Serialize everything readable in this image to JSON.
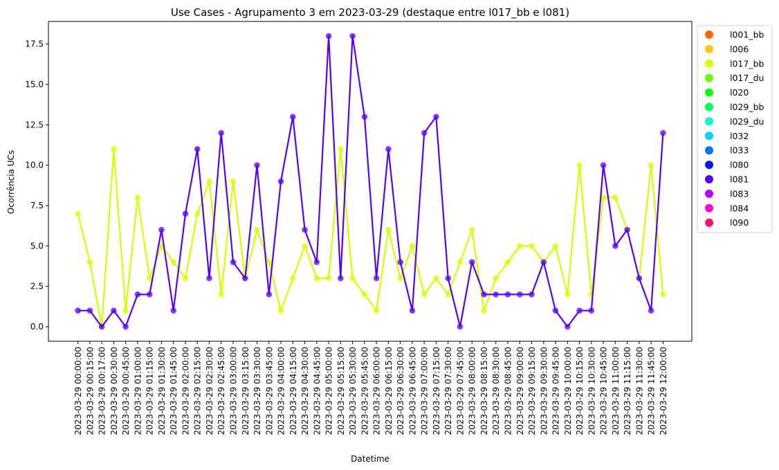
{
  "chart_data": {
    "type": "line",
    "title": "Use Cases - Agrupamento 3 em 2023-03-29 (destaque entre l017_bb e l081)",
    "xlabel": "Datetime",
    "ylabel": "Ocorrência UCs",
    "ylim": [
      -0.9,
      18.9
    ],
    "yticks": [
      "0.0",
      "2.5",
      "5.0",
      "7.5",
      "10.0",
      "12.5",
      "15.0",
      "17.5"
    ],
    "grid": false,
    "legend_position": "outside-right",
    "categories": [
      "2023-03-29 00:00:00",
      "2023-03-29 00:15:00",
      "2023-03-29 00:17:00",
      "2023-03-29 00:30:00",
      "2023-03-29 00:45:00",
      "2023-03-29 01:00:00",
      "2023-03-29 01:15:00",
      "2023-03-29 01:30:00",
      "2023-03-29 01:45:00",
      "2023-03-29 02:00:00",
      "2023-03-29 02:15:00",
      "2023-03-29 02:30:00",
      "2023-03-29 02:45:00",
      "2023-03-29 03:00:00",
      "2023-03-29 03:15:00",
      "2023-03-29 03:30:00",
      "2023-03-29 03:45:00",
      "2023-03-29 04:00:00",
      "2023-03-29 04:15:00",
      "2023-03-29 04:30:00",
      "2023-03-29 04:45:00",
      "2023-03-29 05:00:00",
      "2023-03-29 05:15:00",
      "2023-03-29 05:30:00",
      "2023-03-29 05:45:00",
      "2023-03-29 06:00:00",
      "2023-03-29 06:15:00",
      "2023-03-29 06:30:00",
      "2023-03-29 06:45:00",
      "2023-03-29 07:00:00",
      "2023-03-29 07:15:00",
      "2023-03-29 07:30:00",
      "2023-03-29 07:45:00",
      "2023-03-29 08:00:00",
      "2023-03-29 08:15:00",
      "2023-03-29 08:30:00",
      "2023-03-29 08:45:00",
      "2023-03-29 09:00:00",
      "2023-03-29 09:15:00",
      "2023-03-29 09:30:00",
      "2023-03-29 09:45:00",
      "2023-03-29 10:00:00",
      "2023-03-29 10:15:00",
      "2023-03-29 10:30:00",
      "2023-03-29 10:45:00",
      "2023-03-29 11:00:00",
      "2023-03-29 11:15:00",
      "2023-03-29 11:30:00",
      "2023-03-29 11:45:00",
      "2023-03-29 12:00:00"
    ],
    "series": [
      {
        "name": "l017_bb",
        "color": "#d4ff00",
        "values": [
          7,
          4,
          0,
          11,
          1,
          8,
          3,
          5,
          4,
          3,
          7,
          9,
          2,
          9,
          3,
          6,
          4,
          1,
          3,
          5,
          3,
          3,
          11,
          3,
          2,
          1,
          6,
          3,
          5,
          2,
          3,
          2,
          4,
          6,
          1,
          3,
          4,
          5,
          5,
          4,
          5,
          2,
          10,
          2,
          8,
          8,
          6,
          3,
          10,
          2
        ]
      },
      {
        "name": "l081",
        "color": "#5a00f0",
        "values": [
          1,
          1,
          0,
          1,
          0,
          2,
          2,
          6,
          1,
          7,
          11,
          3,
          12,
          4,
          3,
          10,
          2,
          9,
          13,
          6,
          4,
          18,
          3,
          18,
          13,
          3,
          11,
          4,
          1,
          12,
          13,
          3,
          0,
          4,
          2,
          2,
          2,
          2,
          2,
          4,
          1,
          0,
          1,
          1,
          10,
          5,
          6,
          3,
          1,
          12
        ]
      }
    ],
    "legend": [
      {
        "label": "l001_bb",
        "color": "#ff6a00"
      },
      {
        "label": "l006",
        "color": "#ffc800"
      },
      {
        "label": "l017_bb",
        "color": "#d4ff00"
      },
      {
        "label": "l017_du",
        "color": "#66ff00"
      },
      {
        "label": "l020",
        "color": "#14ff00"
      },
      {
        "label": "l029_bb",
        "color": "#00ff5e"
      },
      {
        "label": "l029_du",
        "color": "#00ffc8"
      },
      {
        "label": "l032",
        "color": "#00d2ff"
      },
      {
        "label": "l033",
        "color": "#0074ff"
      },
      {
        "label": "l080",
        "color": "#0014ff"
      },
      {
        "label": "l081",
        "color": "#5a00ff"
      },
      {
        "label": "l083",
        "color": "#b600ff"
      },
      {
        "label": "l084",
        "color": "#ff00e0"
      },
      {
        "label": "l090",
        "color": "#ff0f6e"
      }
    ]
  }
}
